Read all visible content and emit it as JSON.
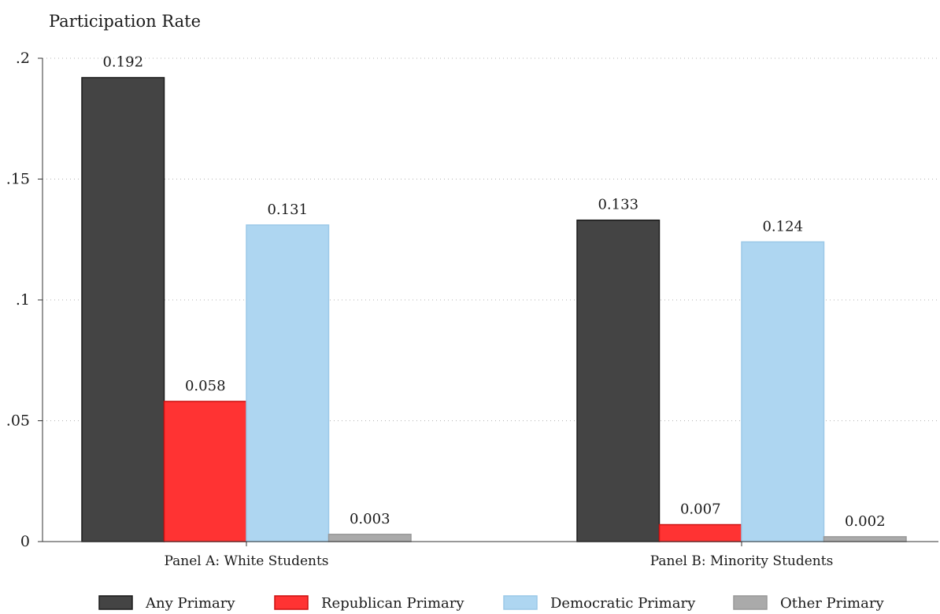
{
  "chart_data": {
    "type": "bar",
    "title": "",
    "xlabel": "",
    "ylabel": "Participation Rate",
    "ylim": [
      0,
      0.2
    ],
    "yticks": [
      {
        "value": 0,
        "label": "0"
      },
      {
        "value": 0.05,
        "label": ".05"
      },
      {
        "value": 0.1,
        "label": ".1"
      },
      {
        "value": 0.15,
        "label": ".15"
      },
      {
        "value": 0.2,
        "label": ".2"
      }
    ],
    "grid": true,
    "legend_position": "bottom",
    "categories": [
      "Panel A: White Students",
      "Panel B: Minority Students"
    ],
    "series": [
      {
        "name": "Any Primary",
        "color": "#444444",
        "border": "#1a1a1a",
        "values": [
          0.192,
          0.133
        ],
        "labels": [
          "0.192",
          "0.133"
        ]
      },
      {
        "name": "Republican Primary",
        "color": "#ff3333",
        "border": "#cc1111",
        "values": [
          0.058,
          0.007
        ],
        "labels": [
          "0.058",
          "0.007"
        ]
      },
      {
        "name": "Democratic Primary",
        "color": "#aed6f1",
        "border": "#9cc9e8",
        "values": [
          0.131,
          0.124
        ],
        "labels": [
          "0.131",
          "0.124"
        ]
      },
      {
        "name": "Other Primary",
        "color": "#aaaaaa",
        "border": "#999999",
        "values": [
          0.003,
          0.002
        ],
        "labels": [
          "0.003",
          "0.002"
        ]
      }
    ]
  }
}
